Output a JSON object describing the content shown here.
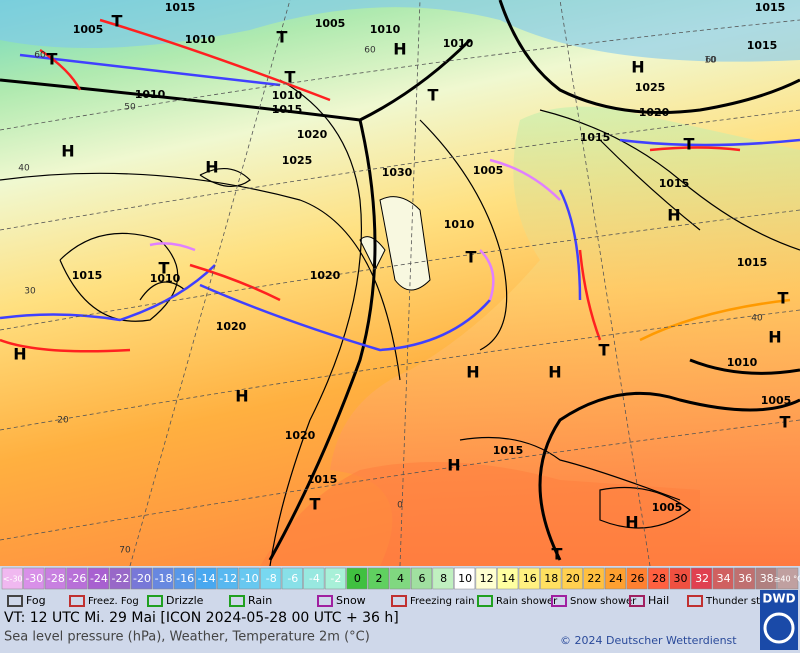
{
  "map": {
    "isobar_labels": [
      "1015",
      "1005",
      "1005",
      "1010",
      "1010",
      "1010",
      "1010",
      "1010",
      "1015",
      "1020",
      "1025",
      "1030",
      "1010",
      "1005",
      "1015",
      "1010",
      "1020",
      "1020",
      "1020",
      "1015",
      "1015",
      "1005",
      "1025",
      "1020",
      "1015",
      "1015",
      "1015",
      "1010",
      "1005",
      "1015",
      "1015"
    ],
    "pressure_centers": [
      "H",
      "H",
      "T",
      "T",
      "T",
      "T",
      "T",
      "H",
      "T",
      "H",
      "H",
      "H",
      "H",
      "H",
      "T",
      "T",
      "H",
      "H",
      "T",
      "H",
      "T",
      "T",
      "H",
      "T",
      "T"
    ],
    "latitude_labels": [
      "60",
      "50",
      "40",
      "30",
      "20",
      "70",
      "60",
      "40",
      "0",
      "10",
      "60"
    ]
  },
  "legend": {
    "temperature_labels": [
      "<-30",
      "-30",
      "-28",
      "-26",
      "-24",
      "-22",
      "-20",
      "-18",
      "-16",
      "-14",
      "-12",
      "-10",
      "-8",
      "-6",
      "-4",
      "-2",
      "0",
      "2",
      "4",
      "6",
      "8",
      "10",
      "12",
      "14",
      "16",
      "18",
      "20",
      "22",
      "24",
      "26",
      "28",
      "30",
      "32",
      "34",
      "36",
      "38",
      "≥40 °C"
    ],
    "temperature_colors": [
      "#f0b8f0",
      "#d890e8",
      "#c880e0",
      "#b870d8",
      "#a860d0",
      "#9868c8",
      "#7878d8",
      "#6888e0",
      "#5898e8",
      "#48a8f0",
      "#58b8f0",
      "#68c8f0",
      "#78d8f0",
      "#88e0e8",
      "#98e8e0",
      "#a8f0d8",
      "#40c040",
      "#60d060",
      "#80d880",
      "#a0e0a0",
      "#c0f0c0",
      "#ffffff",
      "#ffffd0",
      "#ffffa0",
      "#fff080",
      "#ffe060",
      "#ffd050",
      "#ffc040",
      "#ffa030",
      "#ff8030",
      "#ff6040",
      "#f05040",
      "#e04050",
      "#d06060",
      "#c07070",
      "#b08080",
      "#c0a0a0"
    ],
    "weather": [
      "Fog",
      "Freez. Fog",
      "Drizzle",
      "Rain",
      "Snow",
      "Freezing rain",
      "Rain shower",
      "Snow shower",
      "Hail",
      "Thunder storm"
    ]
  },
  "footer": {
    "valid_time": "VT: 12 UTC Mi.  29 Mai [ICON 2024-05-28  00 UTC + 36 h]",
    "description": "Sea level pressure (hPa), Weather, Temperature 2m (°C)",
    "copyright": "© 2024 Deutscher Wetterdienst",
    "logo": "DWD"
  }
}
